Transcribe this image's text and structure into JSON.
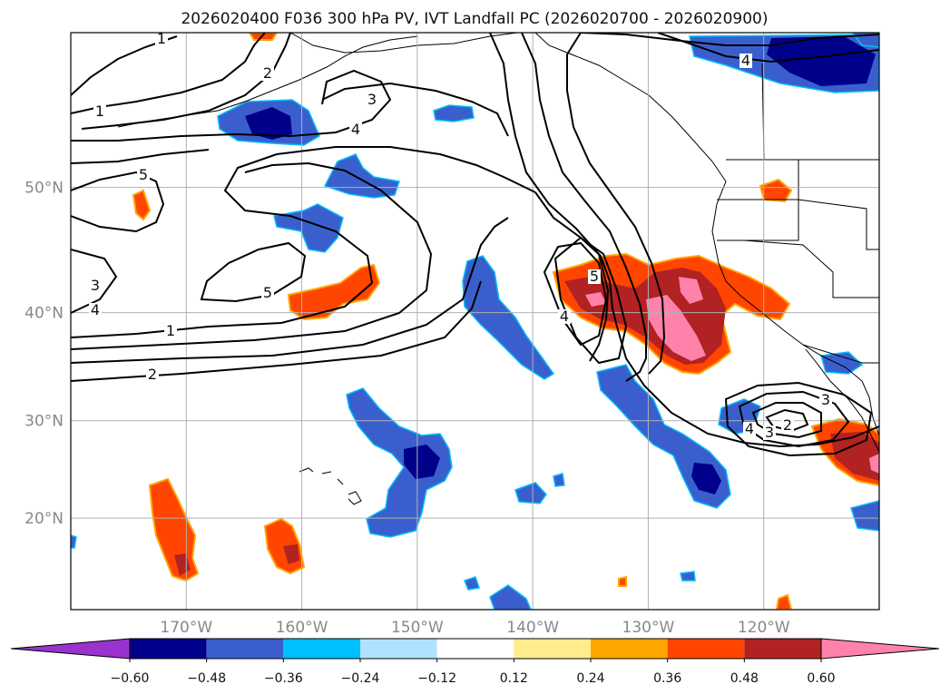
{
  "title": "2026020400 F036 300 hPa PV, IVT Landfall PC (2026020700 - 2026020900)",
  "map": {
    "lon_range": [
      -180,
      -110
    ],
    "lat_range": [
      10,
      60
    ],
    "lat_gridlines": [
      20,
      30,
      40,
      50
    ],
    "lon_gridlines": [
      -170,
      -160,
      -150,
      -140,
      -130,
      -120
    ],
    "lat_labels": [
      "20°N",
      "30°N",
      "40°N",
      "50°N"
    ],
    "lon_labels": [
      "170°W",
      "160°W",
      "150°W",
      "140°W",
      "130°W",
      "120°W"
    ],
    "gridlines": true,
    "contour_labels": [
      "1",
      "2",
      "3",
      "4",
      "5",
      "5",
      "4",
      "3",
      "4",
      "1",
      "2",
      "1",
      "5",
      "3",
      "4",
      "2",
      "3",
      "4"
    ]
  },
  "colorbar": {
    "ticks": [
      "−0.60",
      "−0.48",
      "−0.36",
      "−0.24",
      "−0.12",
      "0.12",
      "0.24",
      "0.36",
      "0.48",
      "0.60"
    ],
    "levels": [
      -0.6,
      -0.48,
      -0.36,
      -0.24,
      -0.12,
      0.12,
      0.24,
      0.36,
      0.48,
      0.6
    ],
    "colors": [
      "#9a32cd",
      "#00008b",
      "#3a5fcd",
      "#00bfff",
      "#b0e2ff",
      "#ffffff",
      "#ffec8b",
      "#ffa500",
      "#ff4500",
      "#b22222",
      "#ff82ab"
    ]
  }
}
